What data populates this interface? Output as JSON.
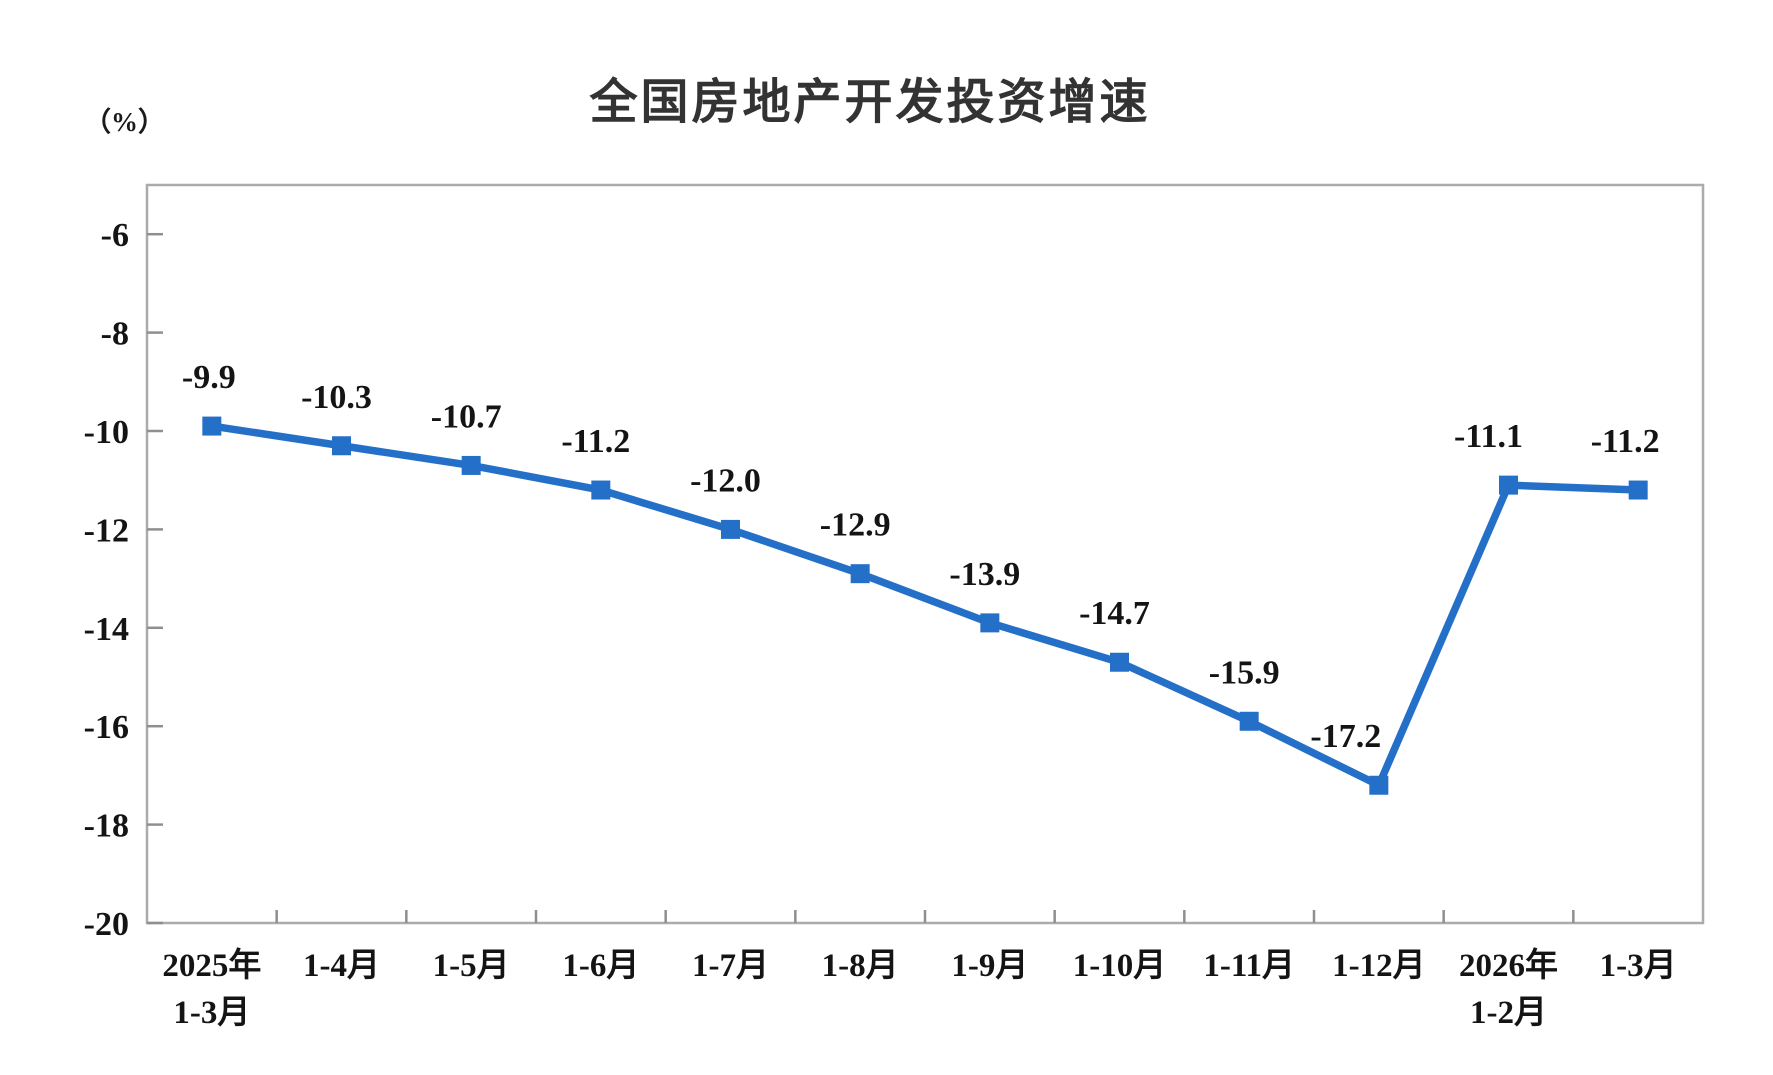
{
  "chart_data": {
    "type": "line",
    "title": "全国房地产开发投资增速",
    "unit_label": "（%）",
    "xlabel": "",
    "ylabel": "",
    "categories": [
      "2025年\n1-3月",
      "1-4月",
      "1-5月",
      "1-6月",
      "1-7月",
      "1-8月",
      "1-9月",
      "1-10月",
      "1-11月",
      "1-12月",
      "2026年\n1-2月",
      "1-3月"
    ],
    "values": [
      -9.9,
      -10.3,
      -10.7,
      -11.2,
      -12.0,
      -12.9,
      -13.9,
      -14.7,
      -15.9,
      -17.2,
      -11.1,
      -11.2
    ],
    "point_labels": [
      "-9.9",
      "-10.3",
      "-10.7",
      "-11.2",
      "-12.0",
      "-12.9",
      "-13.9",
      "-14.7",
      "-15.9",
      "-17.2",
      "-11.1",
      "-11.2"
    ],
    "ylim": [
      -20,
      -5
    ],
    "y_ticks": [
      -6,
      -8,
      -10,
      -12,
      -14,
      -16,
      -18,
      -20
    ],
    "y_tick_labels": [
      "-6",
      "-8",
      "-10",
      "-12",
      "-14",
      "-16",
      "-18",
      "-20"
    ],
    "grid": false,
    "legend": "none",
    "marker": "square",
    "line_color": "#2470C8",
    "marker_color": "#2470C8",
    "axis_color": "#ABABAB",
    "tick_color": "#8F8F8F",
    "text_color": "#141414",
    "title_color": "#333333",
    "background": "#FFFFFF"
  }
}
